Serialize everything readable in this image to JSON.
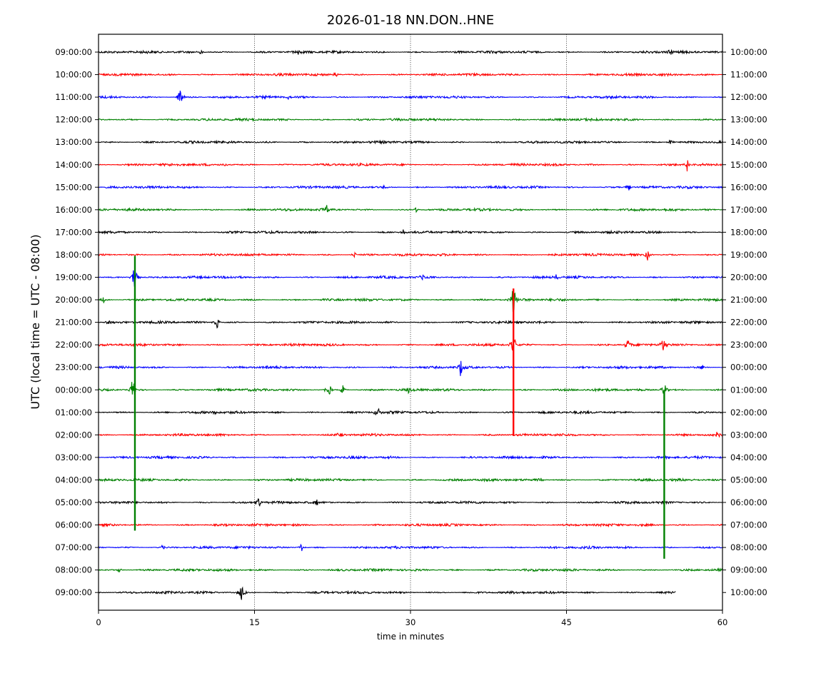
{
  "chart_data": {
    "type": "line",
    "title": "2026-01-18 NN.DON..HNE",
    "xlabel": "time in minutes",
    "ylabel": "UTC (local time = UTC - 08:00)",
    "xlim": [
      0,
      60
    ],
    "x_ticks": [
      "0",
      "15",
      "30",
      "45",
      "60"
    ],
    "x_tick_values": [
      0,
      15,
      30,
      45,
      60
    ],
    "vertical_gridlines_at": [
      15,
      30,
      45
    ],
    "trace_colors_cycle": [
      "#000000",
      "#ff0000",
      "#0000ff",
      "#008000"
    ],
    "left_labels": [
      "09:00:00",
      "10:00:00",
      "11:00:00",
      "12:00:00",
      "13:00:00",
      "14:00:00",
      "15:00:00",
      "16:00:00",
      "17:00:00",
      "18:00:00",
      "19:00:00",
      "20:00:00",
      "21:00:00",
      "22:00:00",
      "23:00:00",
      "00:00:00",
      "01:00:00",
      "02:00:00",
      "03:00:00",
      "04:00:00",
      "05:00:00",
      "06:00:00",
      "07:00:00",
      "08:00:00",
      "09:00:00"
    ],
    "right_labels": [
      "10:00:00",
      "11:00:00",
      "12:00:00",
      "13:00:00",
      "14:00:00",
      "15:00:00",
      "16:00:00",
      "17:00:00",
      "18:00:00",
      "19:00:00",
      "20:00:00",
      "21:00:00",
      "22:00:00",
      "23:00:00",
      "00:00:00",
      "01:00:00",
      "02:00:00",
      "03:00:00",
      "04:00:00",
      "05:00:00",
      "06:00:00",
      "07:00:00",
      "08:00:00",
      "09:00:00",
      "10:00:00"
    ],
    "last_trace_end_minute": 55.5,
    "events": [
      {
        "row": 0,
        "minute": 9.8,
        "amp": 0.2
      },
      {
        "row": 0,
        "minute": 19.2,
        "amp": 0.25
      },
      {
        "row": 0,
        "minute": 55.0,
        "amp": 0.3
      },
      {
        "row": 1,
        "minute": 22.8,
        "amp": 0.25
      },
      {
        "row": 2,
        "minute": 7.9,
        "amp": 1.1
      },
      {
        "row": 2,
        "minute": 18.3,
        "amp": 0.25
      },
      {
        "row": 4,
        "minute": 55.0,
        "amp": 0.25
      },
      {
        "row": 5,
        "minute": 56.6,
        "amp": 0.6
      },
      {
        "row": 5,
        "minute": 12.2,
        "amp": 0.2
      },
      {
        "row": 6,
        "minute": 51.0,
        "amp": 0.4
      },
      {
        "row": 6,
        "minute": 27.5,
        "amp": 0.2
      },
      {
        "row": 7,
        "minute": 21.9,
        "amp": 0.4
      },
      {
        "row": 7,
        "minute": 30.5,
        "amp": 0.25
      },
      {
        "row": 8,
        "minute": 29.3,
        "amp": 0.3
      },
      {
        "row": 9,
        "minute": 52.8,
        "amp": 0.45
      },
      {
        "row": 9,
        "minute": 24.6,
        "amp": 0.25
      },
      {
        "row": 10,
        "minute": 3.5,
        "amp": 1.6
      },
      {
        "row": 10,
        "minute": 31.2,
        "amp": 0.25
      },
      {
        "row": 10,
        "minute": 44.0,
        "amp": 0.25
      },
      {
        "row": 11,
        "minute": 39.9,
        "amp": 1.5
      },
      {
        "row": 11,
        "minute": 0.5,
        "amp": 0.3
      },
      {
        "row": 12,
        "minute": 11.4,
        "amp": 0.5
      },
      {
        "row": 12,
        "minute": 1.0,
        "amp": 0.3
      },
      {
        "row": 13,
        "minute": 39.9,
        "amp": 1.0
      },
      {
        "row": 13,
        "minute": 50.9,
        "amp": 0.6
      },
      {
        "row": 13,
        "minute": 54.3,
        "amp": 0.7
      },
      {
        "row": 14,
        "minute": 34.8,
        "amp": 0.7
      },
      {
        "row": 14,
        "minute": 16.2,
        "amp": 0.3
      },
      {
        "row": 14,
        "minute": 58.0,
        "amp": 0.3
      },
      {
        "row": 15,
        "minute": 3.3,
        "amp": 1.2
      },
      {
        "row": 15,
        "minute": 22.1,
        "amp": 0.9
      },
      {
        "row": 15,
        "minute": 23.5,
        "amp": 0.4
      },
      {
        "row": 15,
        "minute": 29.9,
        "amp": 0.5
      },
      {
        "row": 15,
        "minute": 54.4,
        "amp": 0.7
      },
      {
        "row": 16,
        "minute": 26.8,
        "amp": 0.6
      },
      {
        "row": 16,
        "minute": 11.3,
        "amp": 0.3
      },
      {
        "row": 17,
        "minute": 59.5,
        "amp": 0.3
      },
      {
        "row": 17,
        "minute": 23.2,
        "amp": 0.25
      },
      {
        "row": 18,
        "minute": 27.8,
        "amp": 0.25
      },
      {
        "row": 19,
        "minute": 42.5,
        "amp": 0.25
      },
      {
        "row": 20,
        "minute": 15.4,
        "amp": 0.4
      },
      {
        "row": 20,
        "minute": 21.0,
        "amp": 0.25
      },
      {
        "row": 22,
        "minute": 19.5,
        "amp": 0.4
      },
      {
        "row": 22,
        "minute": 6.2,
        "amp": 0.25
      },
      {
        "row": 23,
        "minute": 2.0,
        "amp": 0.2
      },
      {
        "row": 24,
        "minute": 13.8,
        "amp": 1.2
      }
    ],
    "spans": [
      {
        "minute": 3.5,
        "from_row": 9.05,
        "to_row": 21.25,
        "color": "#008000"
      },
      {
        "minute": 39.9,
        "from_row": 10.5,
        "to_row": 17.05,
        "color": "#ff0000"
      },
      {
        "minute": 54.4,
        "from_row": 15.0,
        "to_row": 22.5,
        "color": "#008000"
      }
    ]
  }
}
